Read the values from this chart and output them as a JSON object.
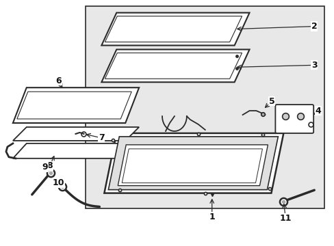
{
  "figsize": [
    4.89,
    3.6
  ],
  "dpi": 100,
  "bg": "#ffffff",
  "box_bg": "#e8e8e8",
  "lc": "#2a2a2a",
  "lw_thick": 1.8,
  "lw_med": 1.3,
  "lw_thin": 0.8
}
